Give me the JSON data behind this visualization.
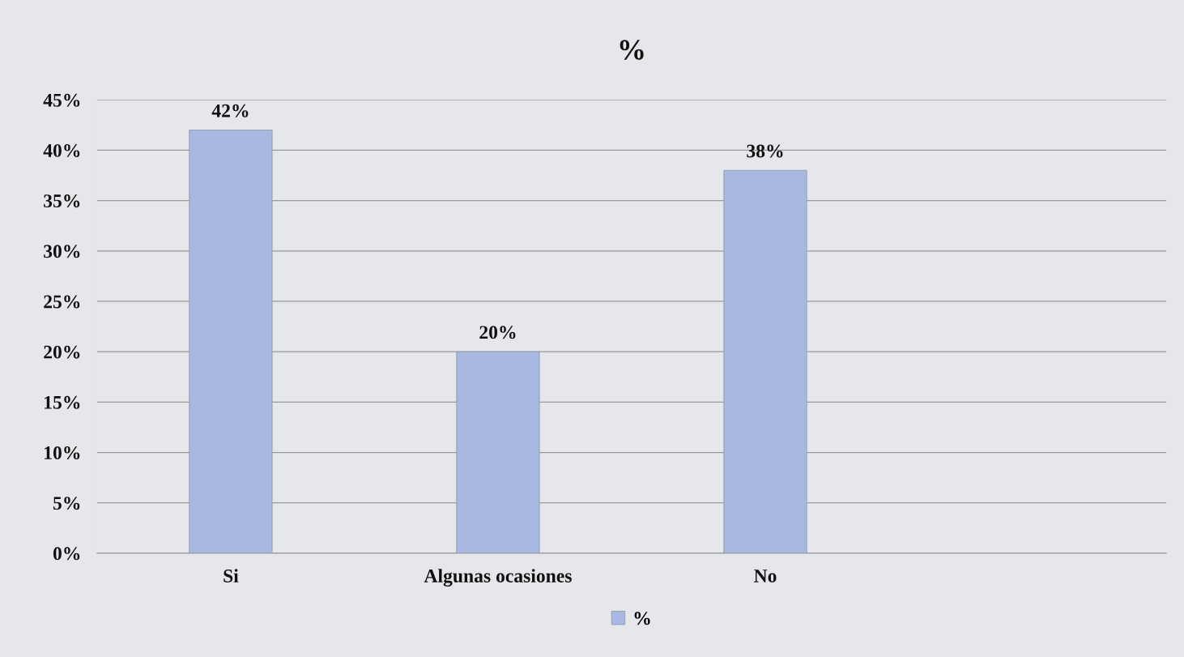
{
  "chart_data": {
    "type": "bar",
    "title": "%",
    "categories": [
      "Si",
      "Algunas ocasiones",
      "No",
      null
    ],
    "series": [
      {
        "name": "%",
        "color": "#a9b8e0",
        "values": [
          42,
          20,
          38,
          null
        ]
      }
    ],
    "ylim": [
      0,
      45
    ],
    "yticks": [
      {
        "value": 0,
        "label": "0%"
      },
      {
        "value": 5,
        "label": "5%"
      },
      {
        "value": 10,
        "label": "10%"
      },
      {
        "value": 15,
        "label": "15%"
      },
      {
        "value": 20,
        "label": "20%"
      },
      {
        "value": 25,
        "label": "25%"
      },
      {
        "value": 30,
        "label": "30%"
      },
      {
        "value": 35,
        "label": "35%"
      },
      {
        "value": 40,
        "label": "40%"
      },
      {
        "value": 45,
        "label": "45%"
      }
    ],
    "value_labels": [
      "42%",
      "20%",
      "38%",
      null
    ],
    "grid": "y",
    "legend": "bottom"
  }
}
